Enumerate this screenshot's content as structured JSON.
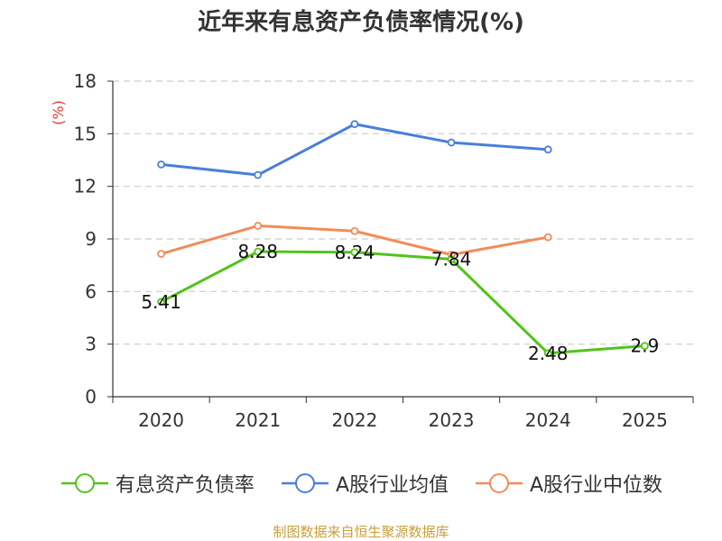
{
  "chart_data": {
    "type": "line",
    "title": "近年来有息资产负债率情况(%)",
    "ylabel": "(%)",
    "categories": [
      "2020",
      "2021",
      "2022",
      "2023",
      "2024",
      "2025"
    ],
    "yticks": [
      "0",
      "3",
      "6",
      "9",
      "12",
      "15",
      "18"
    ],
    "ylim": [
      0,
      18
    ],
    "grid": true,
    "legend_position": "bottom",
    "series": [
      {
        "name": "有息资产负债率",
        "color": "#52c41a",
        "values": [
          5.41,
          8.28,
          8.24,
          7.84,
          2.48,
          2.9
        ],
        "labels": [
          "5.41",
          "8.28",
          "8.24",
          "7.84",
          "2.48",
          "2.9"
        ]
      },
      {
        "name": "A股行业均值",
        "color": "#4a7fd8",
        "values": [
          13.25,
          12.65,
          15.55,
          14.5,
          14.1,
          null
        ]
      },
      {
        "name": "A股行业中位数",
        "color": "#f28c5a",
        "values": [
          8.15,
          9.75,
          9.45,
          8.1,
          9.1,
          null
        ]
      }
    ],
    "source": "制图数据来自恒生聚源数据库"
  }
}
